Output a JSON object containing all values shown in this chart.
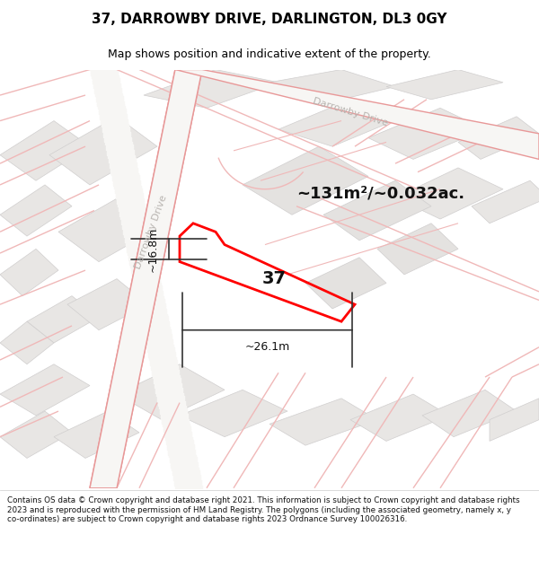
{
  "title": "37, DARROWBY DRIVE, DARLINGTON, DL3 0GY",
  "subtitle": "Map shows position and indicative extent of the property.",
  "area_text": "~131m²/~0.032ac.",
  "number_label": "37",
  "width_label": "~26.1m",
  "height_label": "~16.8m",
  "street_label_left": "Darrowby Drive",
  "street_label_top": "Darrowby Drive",
  "copyright_text": "Contains OS data © Crown copyright and database right 2021. This information is subject to Crown copyright and database rights 2023 and is reproduced with the permission of HM Land Registry. The polygons (including the associated geometry, namely x, y co-ordinates) are subject to Crown copyright and database rights 2023 Ordnance Survey 100026316.",
  "bg_color": "#f7f6f4",
  "block_color": "#e8e6e4",
  "block_edge": "#d0cece",
  "road_color": "#f0b8b8",
  "road_edge": "#e89898",
  "property_color": "#ff0000",
  "annot_color": "#333333",
  "street_color": "#b8b4b0",
  "title_fs": 11,
  "subtitle_fs": 9,
  "area_fs": 13,
  "number_fs": 14,
  "label_fs": 8,
  "annot_fs": 9,
  "footer_fs": 6.3
}
